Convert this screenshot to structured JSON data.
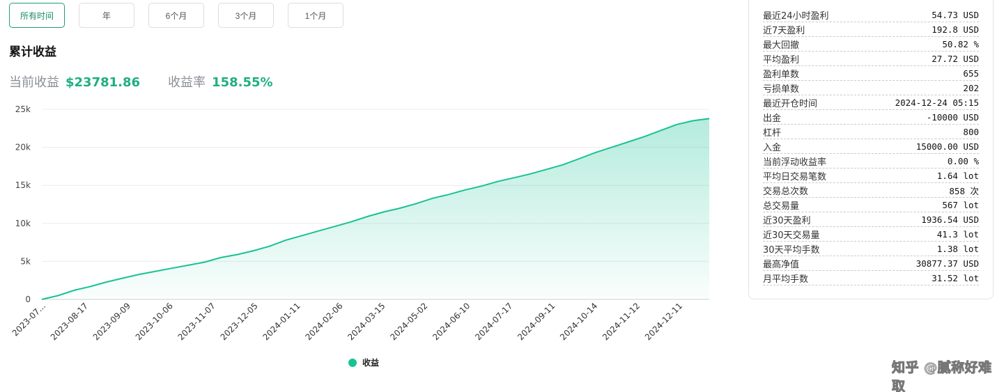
{
  "range_tabs": [
    "所有时间",
    "年",
    "6个月",
    "3个月",
    "1个月"
  ],
  "section_title": "累计收益",
  "summary": {
    "current_label": "当前收益",
    "current_value": "$23781.86",
    "rate_label": "收益率",
    "rate_value": "158.55%"
  },
  "legend": {
    "label": "收益",
    "color": "#17c293"
  },
  "stats": [
    {
      "label": "最近24小时盈利",
      "value": "54.73 USD"
    },
    {
      "label": "近7天盈利",
      "value": "192.8 USD"
    },
    {
      "label": "最大回撤",
      "value": "50.82 %"
    },
    {
      "label": "平均盈利",
      "value": "27.72 USD"
    },
    {
      "label": "盈利单数",
      "value": "655"
    },
    {
      "label": "亏损单数",
      "value": "202"
    },
    {
      "label": "最近开仓时间",
      "value": "2024-12-24 05:15"
    },
    {
      "label": "出金",
      "value": "-10000 USD"
    },
    {
      "label": "杠杆",
      "value": "800"
    },
    {
      "label": "入金",
      "value": "15000.00 USD"
    },
    {
      "label": "当前浮动收益率",
      "value": "0.00 %"
    },
    {
      "label": "平均日交易笔数",
      "value": "1.64 lot"
    },
    {
      "label": "交易总次数",
      "value": "858 次"
    },
    {
      "label": "总交易量",
      "value": "567 lot"
    },
    {
      "label": "近30天盈利",
      "value": "1936.54 USD"
    },
    {
      "label": "近30天交易量",
      "value": "41.3 lot"
    },
    {
      "label": "30天平均手数",
      "value": "1.38 lot"
    },
    {
      "label": "最高净值",
      "value": "30877.37 USD"
    },
    {
      "label": "月平均手数",
      "value": "31.52 lot"
    }
  ],
  "watermark": "知乎 @腻称好难取",
  "chart_data": {
    "type": "area",
    "title": "",
    "xlabel": "",
    "ylabel": "",
    "ylim": [
      0,
      25000
    ],
    "y_ticks": [
      0,
      5000,
      10000,
      15000,
      20000,
      25000
    ],
    "y_tick_labels": [
      "0",
      "5k",
      "10k",
      "15k",
      "20k",
      "25k"
    ],
    "x_tick_labels": [
      "2023-07...",
      "2023-08-17",
      "2023-09-09",
      "2023-10-06",
      "2023-11-07",
      "2023-12-05",
      "2024-01-11",
      "2024-02-06",
      "2024-03-15",
      "2024-05-02",
      "2024-06-10",
      "2024-07-17",
      "2024-09-11",
      "2024-10-14",
      "2024-11-12",
      "2024-12-11"
    ],
    "grid": true,
    "legend": "bottom",
    "series": [
      {
        "name": "收益",
        "color": "#17c293",
        "values": [
          0,
          500,
          1200,
          1700,
          2300,
          2800,
          3300,
          3700,
          4100,
          4500,
          4900,
          5500,
          5900,
          6400,
          7000,
          7800,
          8400,
          9000,
          9600,
          10200,
          10900,
          11500,
          12000,
          12600,
          13300,
          13800,
          14400,
          14900,
          15500,
          16000,
          16500,
          17100,
          17700,
          18500,
          19300,
          20000,
          20700,
          21400,
          22200,
          23000,
          23500,
          23781.86
        ]
      }
    ]
  }
}
